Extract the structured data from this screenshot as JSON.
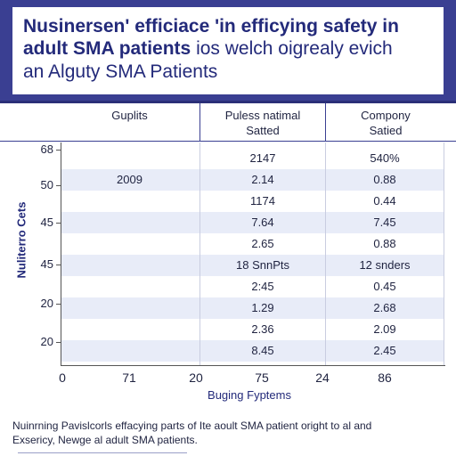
{
  "title": {
    "line1": "Nusinersen' efficiace 'in efficying safety in",
    "line2_bold": "adult SMA patients",
    "line2_rest": " ios welch oigrealy evich",
    "line3": "an Alguty SMA Patients"
  },
  "columns": {
    "c1": "Guplits",
    "c2_line1": "Puless natimal",
    "c2_line2": "Satted",
    "c3_line1": "Compony",
    "c3_line2": "Satied"
  },
  "chart_data": {
    "type": "table",
    "ylabel": "Nuliterro Cets",
    "xlabel": "Buging Fyptems",
    "y_ticks": [
      "68",
      "50",
      "45",
      "45",
      "20",
      "20"
    ],
    "x_ticks": [
      "0",
      "71",
      "20",
      "75",
      "24",
      "86"
    ],
    "rows": [
      {
        "label": "",
        "c2": "2147",
        "c3": "540%"
      },
      {
        "label": "2009",
        "c2": "2.14",
        "c3": "0.88"
      },
      {
        "label": "",
        "c2": "1174",
        "c3": "0.44"
      },
      {
        "label": "",
        "c2": "7.64",
        "c3": "7.45"
      },
      {
        "label": "",
        "c2": "2.65",
        "c3": "0.88"
      },
      {
        "label": "",
        "c2": "18 SnnPts",
        "c3": "12 snders"
      },
      {
        "label": "",
        "c2": "2:45",
        "c3": "0.45"
      },
      {
        "label": "",
        "c2": "1.29",
        "c3": "2.68"
      },
      {
        "label": "",
        "c2": "2.36",
        "c3": "2.09"
      },
      {
        "label": "",
        "c2": "8.45",
        "c3": "2.45"
      }
    ]
  },
  "footer": {
    "line1": "Nuinrning Pavislcorls effacying parts of Ite aoult SMA patient oright to al and",
    "line2": "Exsericy, Newge al adult SMA patients."
  }
}
